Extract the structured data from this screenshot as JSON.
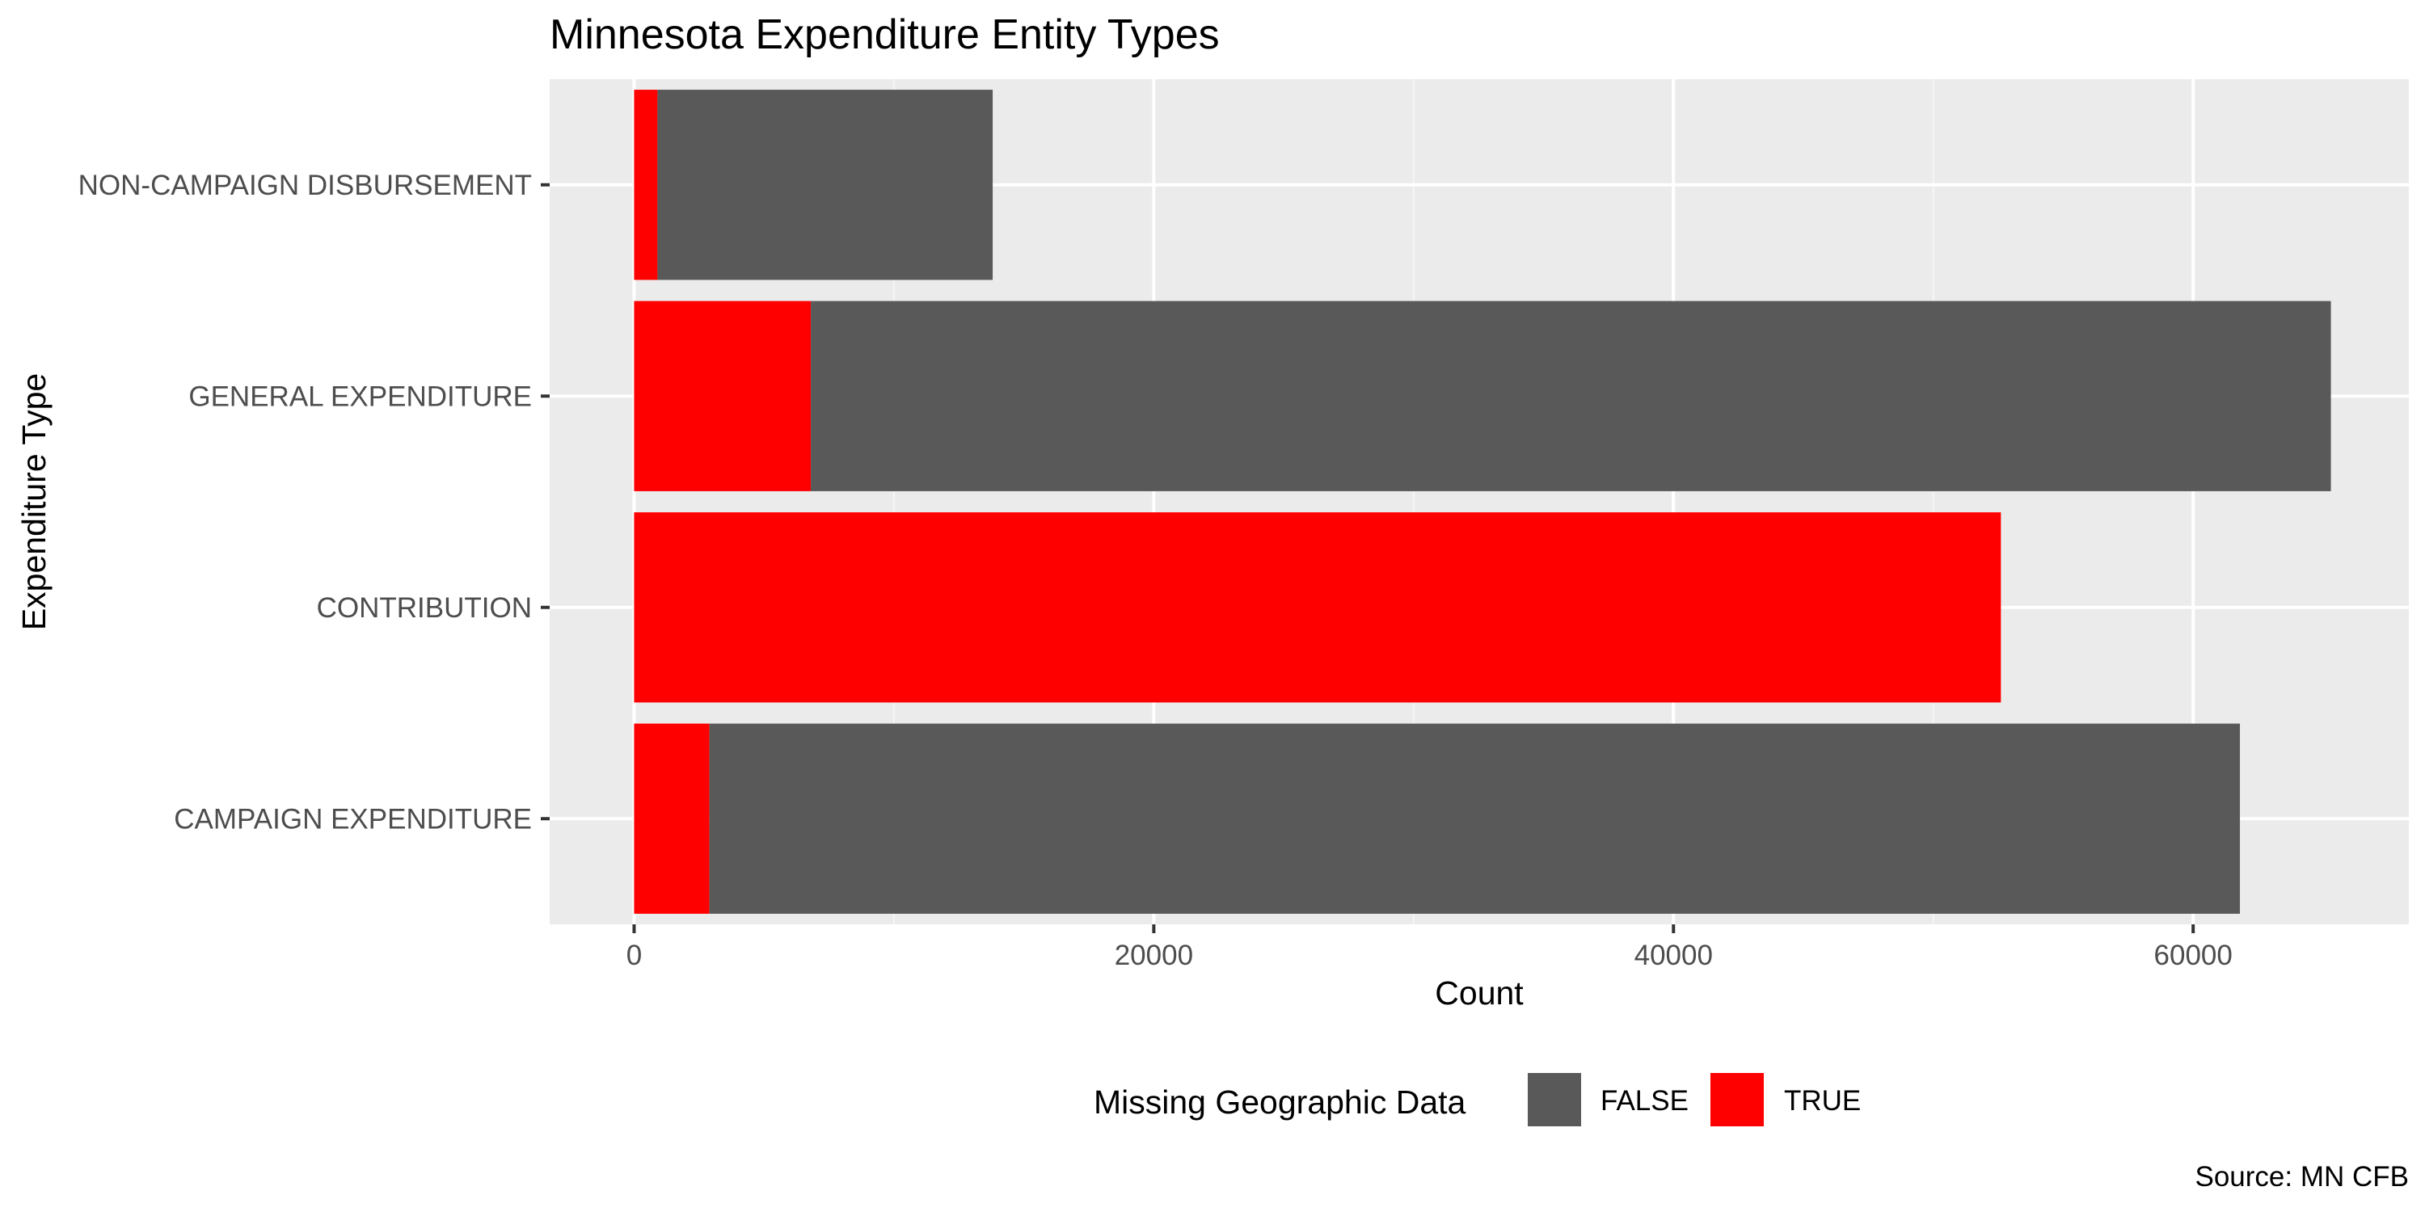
{
  "chart_data": {
    "type": "bar",
    "orientation": "horizontal",
    "stacked": true,
    "title": "Minnesota Expenditure Entity Types",
    "xlabel": "Count",
    "ylabel": "Expenditure Type",
    "caption": "Source: MN CFB",
    "categories": [
      "CAMPAIGN EXPENDITURE",
      "CONTRIBUTION",
      "GENERAL EXPENDITURE",
      "NON-CAMPAIGN DISBURSEMENT"
    ],
    "series": [
      {
        "name": "TRUE",
        "color": "#ff0000",
        "values": [
          2900,
          52600,
          6800,
          900
        ]
      },
      {
        "name": "FALSE",
        "color": "#595959",
        "values": [
          58900,
          0,
          58500,
          12900
        ]
      }
    ],
    "xlim": [
      -3250,
      68300
    ],
    "xticks": [
      0,
      20000,
      40000,
      60000
    ],
    "xtick_labels": [
      "0",
      "20000",
      "40000",
      "60000"
    ],
    "grid": true,
    "legend": {
      "title": "Missing Geographic Data",
      "position": "bottom",
      "entries": [
        {
          "label": "FALSE",
          "color": "#595959"
        },
        {
          "label": "TRUE",
          "color": "#ff0000"
        }
      ]
    },
    "colors": {
      "panel_background": "#ebebeb",
      "grid_major": "#ffffff",
      "grid_minor": "#f5f5f5"
    }
  }
}
